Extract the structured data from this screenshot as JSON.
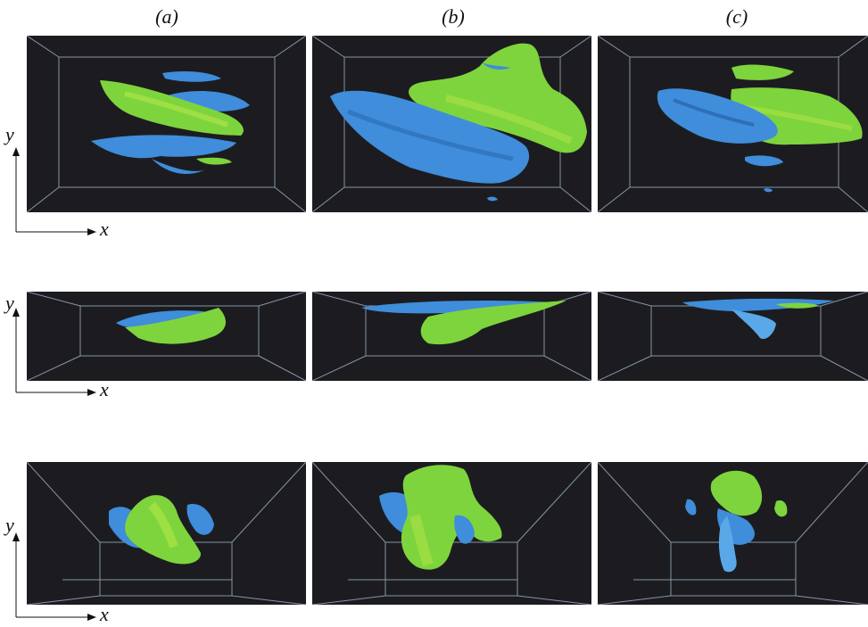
{
  "figure": {
    "column_labels": [
      "(a)",
      "(b)",
      "(c)"
    ],
    "axis_labels": {
      "horizontal": "x",
      "vertical": "y"
    },
    "colors": {
      "background": "#1c1c20",
      "box_lines": "#9fb4c6",
      "blue_surface": "#3f8ddb",
      "blue_dark": "#2e6fb6",
      "green_surface": "#7ed43c",
      "green_light": "#b4e64a"
    }
  }
}
